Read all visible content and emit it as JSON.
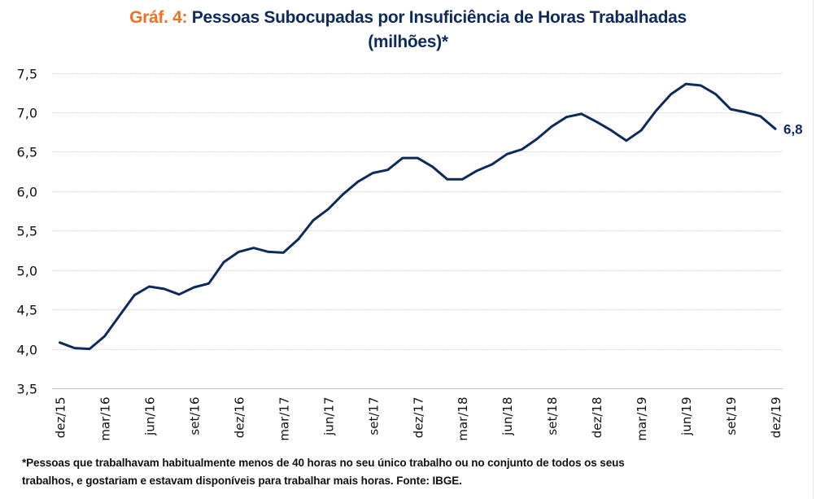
{
  "header": {
    "title_prefix": "Gráf. 4:",
    "title_main": " Pessoas Subocupadas por Insuficiência de Horas Trabalhadas",
    "title_line2": "(milhões)*"
  },
  "footnote": {
    "line1": "*Pessoas que trabalhavam habitualmente menos de 40 horas no seu único trabalho ou no conjunto de todos os seus",
    "line2": "trabalhos, e gostariam e estavam disponíveis para trabalhar mais horas. Fonte: IBGE."
  },
  "colors": {
    "title_prefix": "#f07021",
    "title_main": "#0d2a5e",
    "series_line": "#0d2a5e",
    "gridline": "#d9d9d9",
    "axis": "#bfbfbf"
  },
  "chart_data": {
    "type": "line",
    "title": "Gráf. 4: Pessoas Subocupadas por Insuficiência de Horas Trabalhadas (milhões)*",
    "xlabel": "",
    "ylabel": "",
    "ylim": [
      3.5,
      7.5
    ],
    "yticks": [
      3.5,
      4.0,
      4.5,
      5.0,
      5.5,
      6.0,
      6.5,
      7.0,
      7.5
    ],
    "ytick_labels": [
      "3,5",
      "4,0",
      "4,5",
      "5,0",
      "5,5",
      "6,0",
      "6,5",
      "7,0",
      "7,5"
    ],
    "grid": "horizontal",
    "legend": "none",
    "x": [
      "dez/15",
      "jan/16",
      "fev/16",
      "mar/16",
      "abr/16",
      "mai/16",
      "jun/16",
      "jul/16",
      "ago/16",
      "set/16",
      "out/16",
      "nov/16",
      "dez/16",
      "jan/17",
      "fev/17",
      "mar/17",
      "abr/17",
      "mai/17",
      "jun/17",
      "jul/17",
      "ago/17",
      "set/17",
      "out/17",
      "nov/17",
      "dez/17",
      "jan/18",
      "fev/18",
      "mar/18",
      "abr/18",
      "mai/18",
      "jun/18",
      "jul/18",
      "ago/18",
      "set/18",
      "out/18",
      "nov/18",
      "dez/18",
      "jan/19",
      "fev/19",
      "mar/19",
      "abr/19",
      "mai/19",
      "jun/19",
      "jul/19",
      "ago/19",
      "set/19",
      "out/19",
      "nov/19",
      "dez/19"
    ],
    "xtick_labels": [
      "dez/15",
      "mar/16",
      "jun/16",
      "set/16",
      "dez/16",
      "mar/17",
      "jun/17",
      "set/17",
      "dez/17",
      "mar/18",
      "jun/18",
      "set/18",
      "dez/18",
      "mar/19",
      "jun/19",
      "set/19",
      "dez/19"
    ],
    "xtick_every": 3,
    "series": [
      {
        "name": "Pessoas Subocupadas (milhões)",
        "values": [
          4.08,
          4.01,
          4.0,
          4.16,
          4.42,
          4.68,
          4.79,
          4.76,
          4.69,
          4.78,
          4.83,
          5.1,
          5.23,
          5.28,
          5.23,
          5.22,
          5.39,
          5.63,
          5.77,
          5.96,
          6.12,
          6.23,
          6.27,
          6.42,
          6.42,
          6.31,
          6.15,
          6.15,
          6.26,
          6.34,
          6.47,
          6.53,
          6.66,
          6.82,
          6.94,
          6.98,
          6.88,
          6.77,
          6.64,
          6.77,
          7.02,
          7.23,
          7.36,
          7.34,
          7.23,
          7.04,
          7.0,
          6.95,
          6.79
        ]
      }
    ],
    "annotations": [
      {
        "text": "6,8",
        "at": "dez/19"
      }
    ]
  }
}
